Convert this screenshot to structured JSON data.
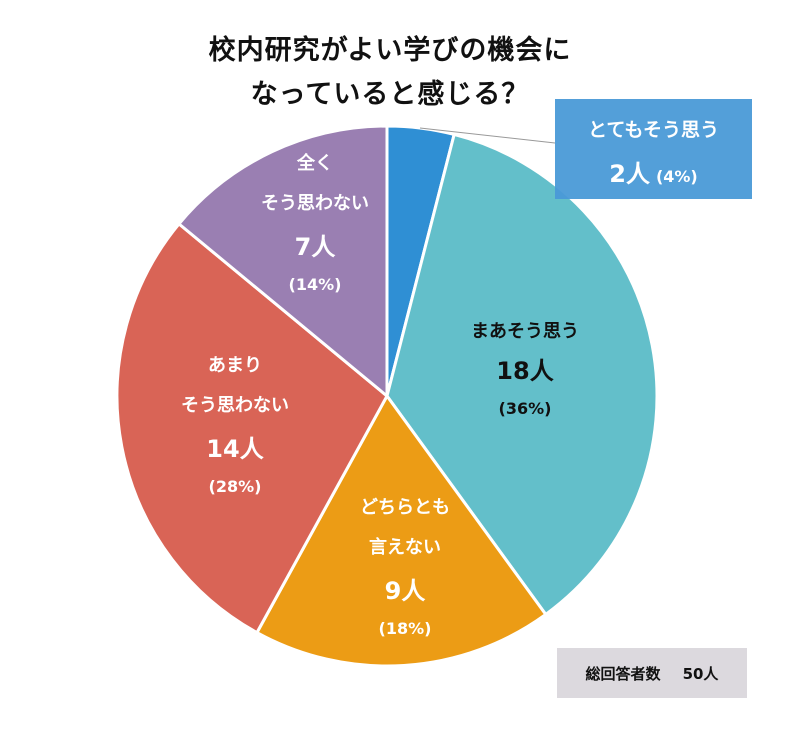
{
  "title": {
    "line1": "校内研究がよい学びの機会に",
    "line2": "なっていると感じる？"
  },
  "slices": [
    {
      "label": "とてもそう思う",
      "count": "2人",
      "percent": "(4%)",
      "value": 4,
      "color": "#2f8fd4"
    },
    {
      "label": "まあそう思う",
      "count": "18人",
      "percent": "(36%)",
      "value": 36,
      "color": "#63bfca"
    },
    {
      "label_line1": "どちらとも",
      "label_line2": "言えない",
      "count": "9人",
      "percent": "(18%)",
      "value": 18,
      "color": "#ec9c15"
    },
    {
      "label_line1": "あまり",
      "label_line2": "そう思わない",
      "count": "14人",
      "percent": "(28%)",
      "value": 28,
      "color": "#d96456"
    },
    {
      "label_line1": "全く",
      "label_line2": "そう思わない",
      "count": "7人",
      "percent": "(14%)",
      "value": 14,
      "color": "#9a7fb2"
    }
  ],
  "total": {
    "label": "総回答者数",
    "value": "50人"
  },
  "chart_data": {
    "type": "pie",
    "title": "校内研究がよい学びの機会になっていると感じる？",
    "categories": [
      "とてもそう思う",
      "まあそう思う",
      "どちらとも言えない",
      "あまりそう思わない",
      "全くそう思わない"
    ],
    "values": [
      2,
      18,
      9,
      14,
      7
    ],
    "percentages": [
      4,
      36,
      18,
      28,
      14
    ],
    "unit": "人",
    "colors": [
      "#2f8fd4",
      "#63bfca",
      "#ec9c15",
      "#d96456",
      "#9a7fb2"
    ],
    "start_angle": "12 o'clock, clockwise",
    "annotations": [
      "総回答者数 50人"
    ],
    "total": 50
  }
}
